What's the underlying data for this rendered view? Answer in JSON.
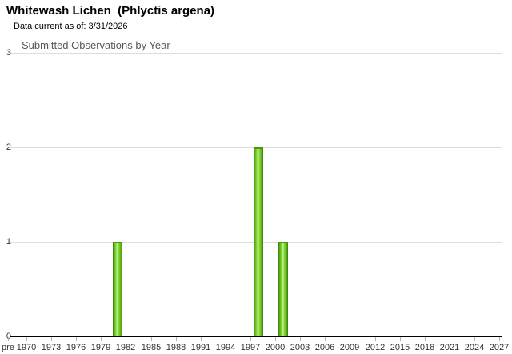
{
  "page": {
    "title": "Whitewash Lichen  (Phlyctis argena)",
    "data_current": "Data current as of: 3/31/2026"
  },
  "chart_data": {
    "type": "bar",
    "title": "Submitted Observations by Year",
    "xlabel": "",
    "ylabel": "",
    "ylim": [
      0,
      3
    ],
    "y_ticks": [
      0,
      1,
      2,
      3
    ],
    "grid": "horizontal-only",
    "legend": "none",
    "x_axis_labels": [
      "pre",
      "1970",
      "1973",
      "1976",
      "1979",
      "1982",
      "1985",
      "1988",
      "1991",
      "1994",
      "1997",
      "2000",
      "2003",
      "2006",
      "2009",
      "2012",
      "2015",
      "2018",
      "2021",
      "2024",
      "2027"
    ],
    "series": [
      {
        "name": "Submitted Observations",
        "points": [
          {
            "year": 1981,
            "value": 1
          },
          {
            "year": 1998,
            "value": 2
          },
          {
            "year": 2001,
            "value": 1
          }
        ]
      }
    ],
    "colors": {
      "bar_fill": "#7ccb2d",
      "bar_border": "#3e8d08",
      "gridline": "#dddddd",
      "axis": "#000000",
      "tick_text": "#333333",
      "chart_title_text": "#595959"
    }
  }
}
